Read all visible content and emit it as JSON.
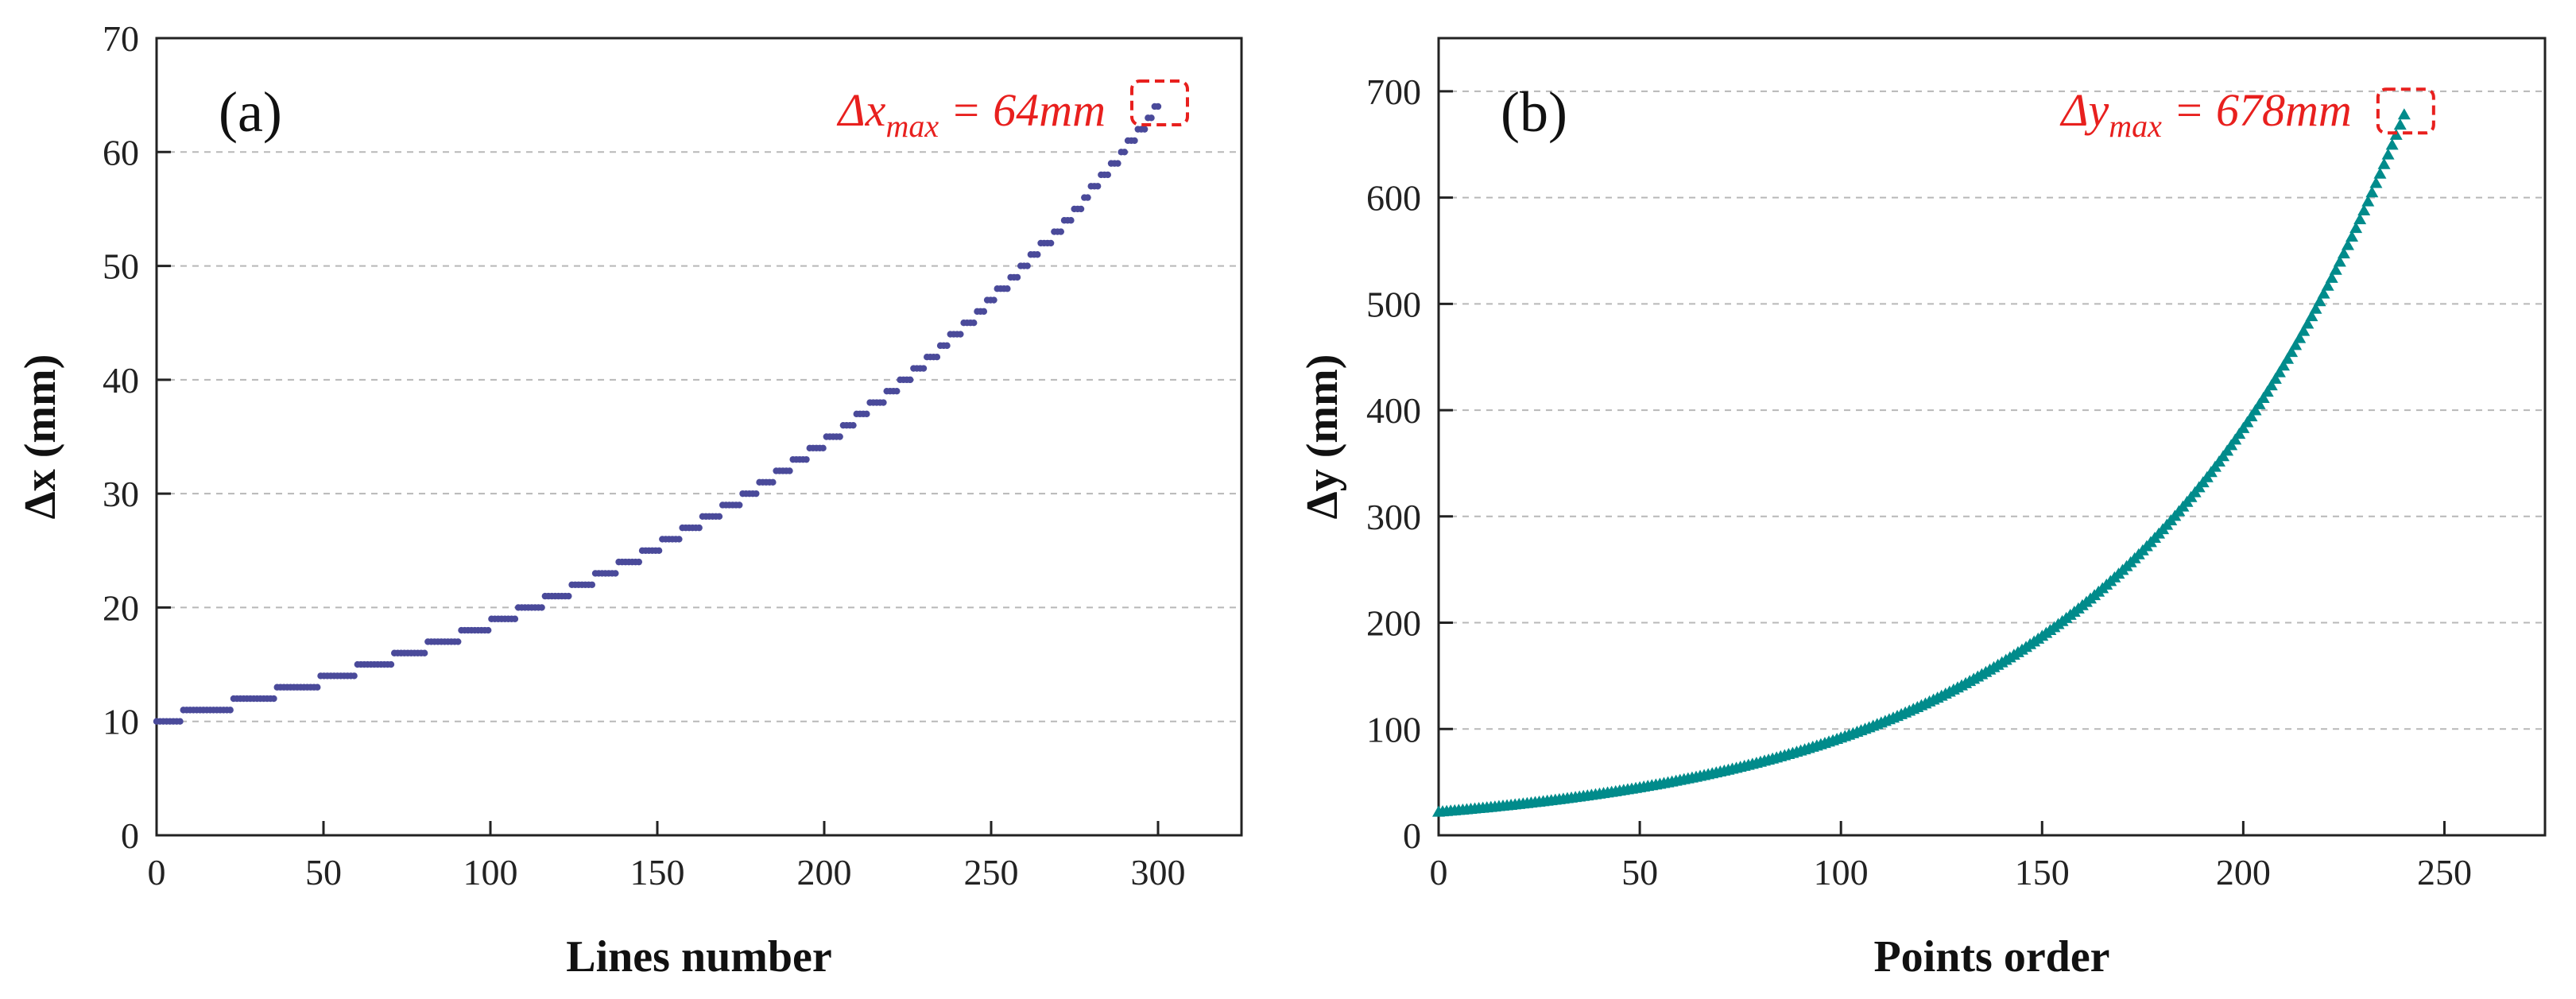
{
  "chart_data": [
    {
      "type": "scatter",
      "panel_label": "(a)",
      "xlabel": "Lines number",
      "ylabel": "Δx (mm)",
      "xlim": [
        0,
        325
      ],
      "ylim": [
        0,
        70
      ],
      "xticks": [
        0,
        50,
        100,
        150,
        200,
        250,
        300
      ],
      "yticks": [
        0,
        10,
        20,
        30,
        40,
        50,
        60,
        70
      ],
      "grid": "horizontal-dashed",
      "marker": "circle",
      "color": "#4a4a9a",
      "series": [
        {
          "name": "Δx",
          "model": "exponential",
          "x_range": [
            0,
            300
          ],
          "n_points": 300,
          "y_start": 10,
          "y_end": 64,
          "rounding": 1
        }
      ],
      "annotation": {
        "text": "Δx_max = 64mm",
        "display_prefix": "Δx",
        "display_sub": "max",
        "display_suffix": " = 64mm",
        "color": "#e8201e",
        "highlight_point": [
          300,
          64
        ]
      }
    },
    {
      "type": "scatter",
      "panel_label": "(b)",
      "xlabel": "Points order",
      "ylabel": "Δy (mm)",
      "xlim": [
        0,
        275
      ],
      "ylim": [
        0,
        750
      ],
      "xticks": [
        0,
        50,
        100,
        150,
        200,
        250
      ],
      "yticks": [
        0,
        100,
        200,
        300,
        400,
        500,
        600,
        700
      ],
      "grid": "horizontal-dashed",
      "marker": "triangle",
      "color": "#008b8b",
      "series": [
        {
          "name": "Δy",
          "model": "exponential",
          "x_range": [
            0,
            240
          ],
          "n_points": 241,
          "y_start": 22,
          "y_end": 678,
          "rounding": 0
        }
      ],
      "annotation": {
        "text": "Δy_max = 678mm",
        "display_prefix": "Δy",
        "display_sub": "max",
        "display_suffix": " = 678mm",
        "color": "#e8201e",
        "highlight_point": [
          240,
          678
        ]
      }
    }
  ]
}
